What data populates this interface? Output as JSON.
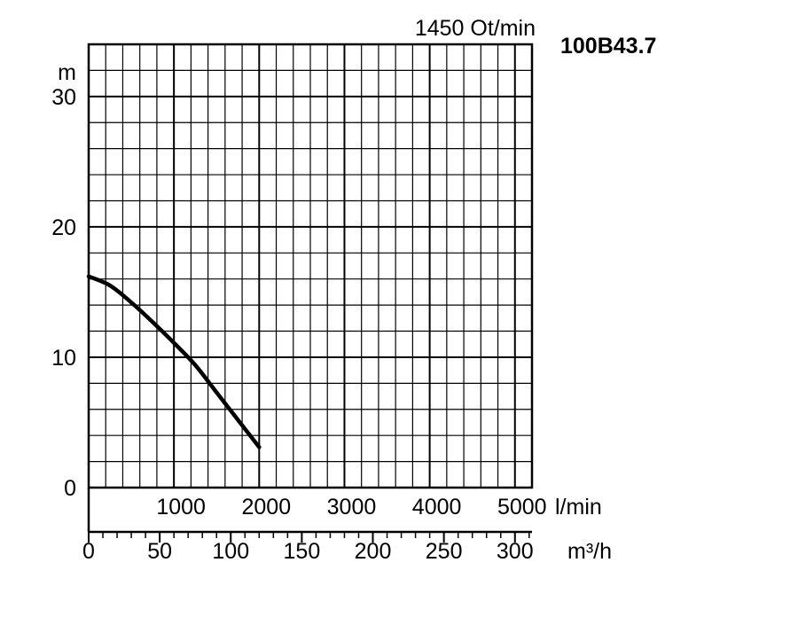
{
  "header": {
    "speed": "1450 Ot/min",
    "model": "100B43.7"
  },
  "chart_data": {
    "type": "line",
    "title": "1450 Ot/min",
    "model": "100B43.7",
    "ylabel": "m",
    "xlabel": "l/min",
    "x2label": "m³/h",
    "ylim": [
      0,
      34
    ],
    "xlim": [
      0,
      5200
    ],
    "x2lim": [
      0,
      312
    ],
    "grid": true,
    "y_ticks": [
      "0",
      "10",
      "20",
      "30"
    ],
    "x_ticks": [
      "1000",
      "2000",
      "3000",
      "4000",
      "5000"
    ],
    "x2_ticks": [
      "0",
      "50",
      "100",
      "150",
      "200",
      "250",
      "300"
    ],
    "series": [
      {
        "x": [
          0,
          250,
          500,
          750,
          1000,
          1250,
          1500,
          1750,
          2000
        ],
        "y": [
          16.2,
          15.5,
          14.2,
          12.7,
          11.1,
          9.4,
          7.3,
          5.2,
          3.1
        ]
      }
    ]
  }
}
